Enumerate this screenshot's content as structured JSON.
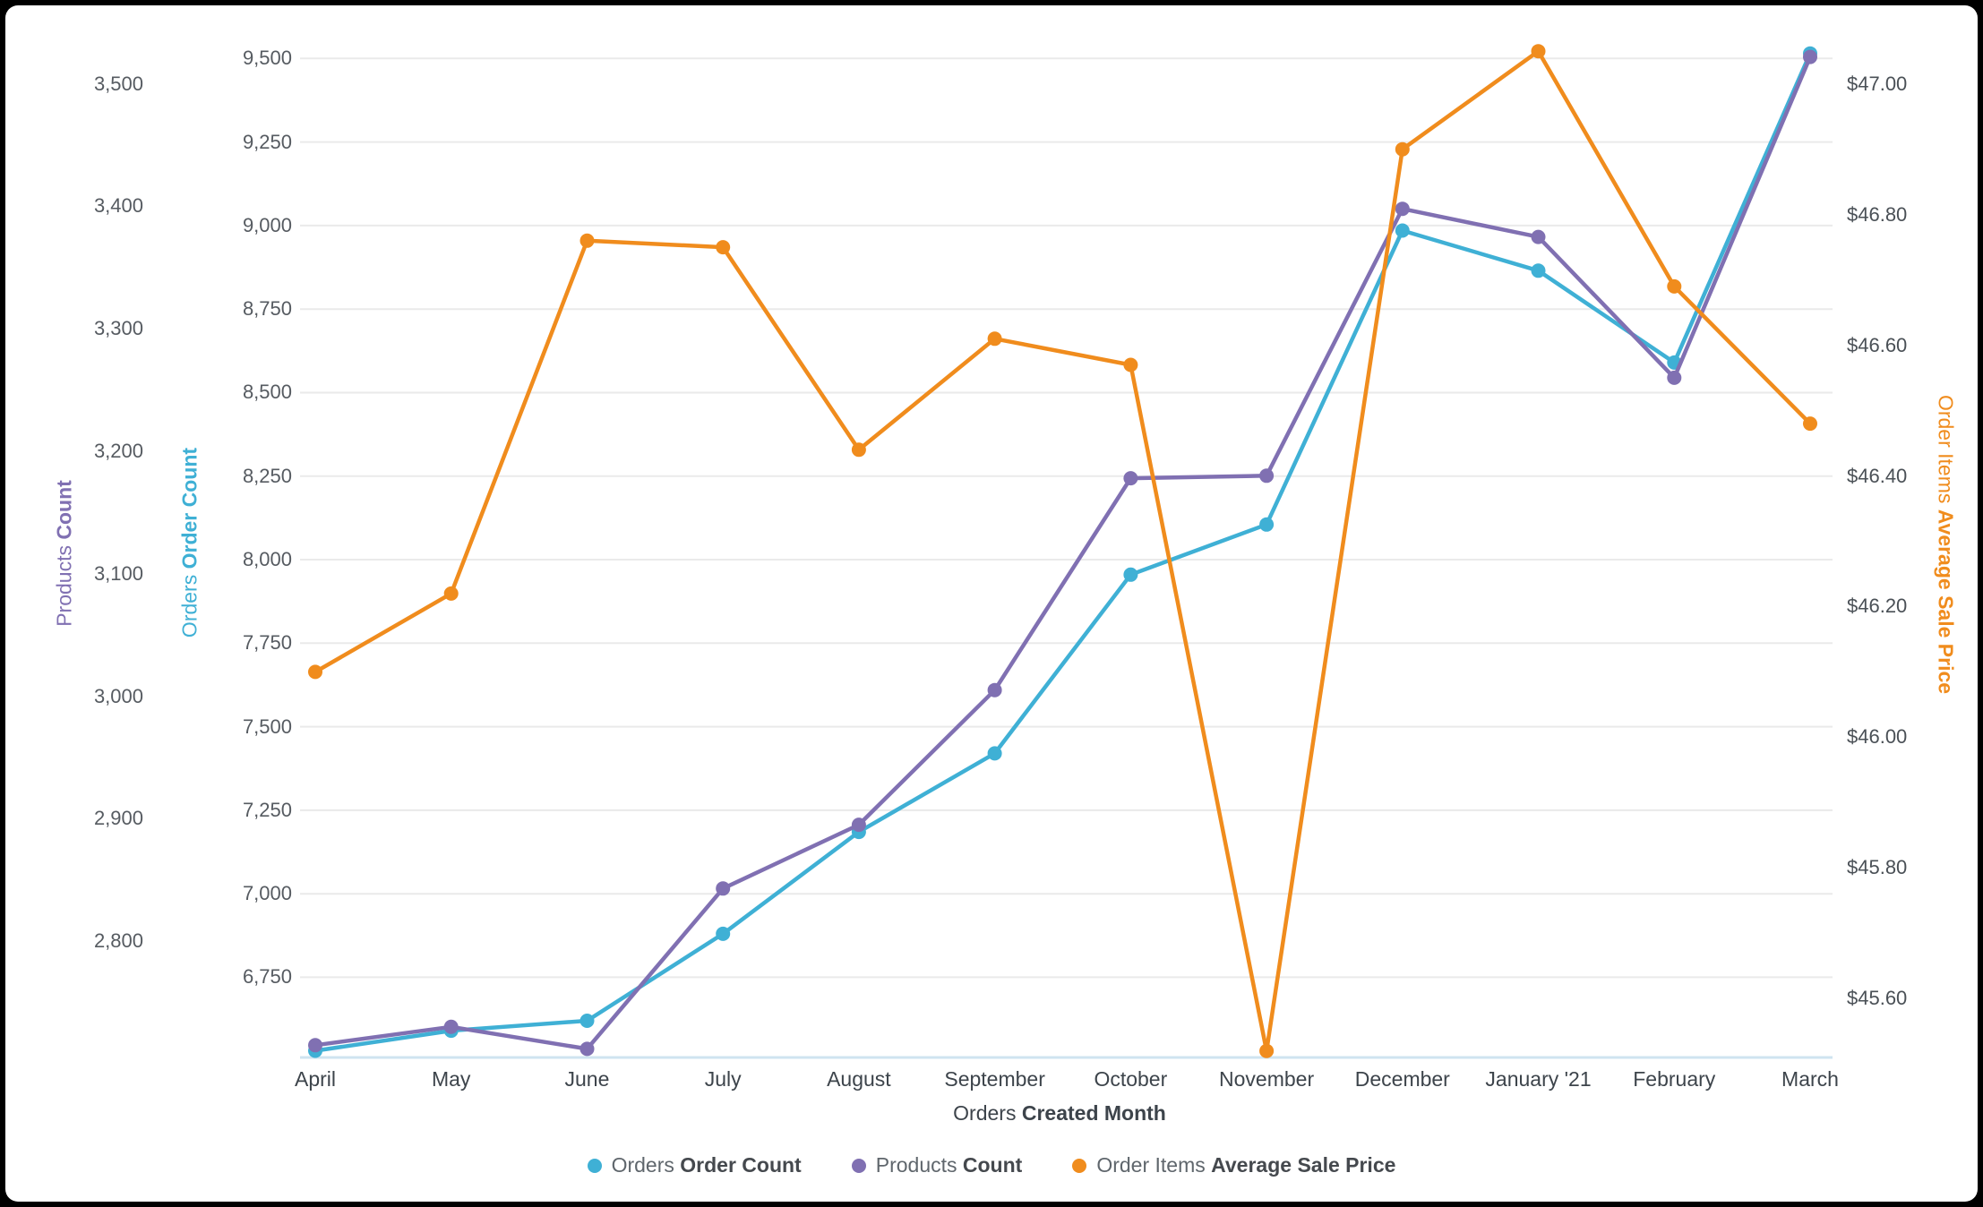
{
  "chart_data": {
    "type": "line",
    "title": "",
    "legend_position": "bottom",
    "grid": "horizontal",
    "x": {
      "title_prefix": "Orders",
      "title_bold": "Created Month",
      "categories": [
        "April",
        "May",
        "June",
        "July",
        "August",
        "September",
        "October",
        "November",
        "December",
        "January '21",
        "February",
        "March"
      ]
    },
    "axes": {
      "products": {
        "title_prefix": "Products",
        "title_bold": "Count",
        "color": "#8070B2",
        "side": "left-outer",
        "range": [
          2705,
          3548
        ],
        "ticks": [
          {
            "label": "3,500",
            "value": 3500
          },
          {
            "label": "3,400",
            "value": 3400
          },
          {
            "label": "3,300",
            "value": 3300
          },
          {
            "label": "3,200",
            "value": 3200
          },
          {
            "label": "3,100",
            "value": 3100
          },
          {
            "label": "3,000",
            "value": 3000
          },
          {
            "label": "2,900",
            "value": 2900
          },
          {
            "label": "2,800",
            "value": 2800
          }
        ]
      },
      "orders": {
        "title_prefix": "Orders",
        "title_bold": "Order Count",
        "color": "#3FB0D5",
        "side": "left-inner",
        "range": [
          6510,
          9600
        ],
        "ticks": [
          {
            "label": "9,500",
            "value": 9500
          },
          {
            "label": "9,250",
            "value": 9250
          },
          {
            "label": "9,000",
            "value": 9000
          },
          {
            "label": "8,750",
            "value": 8750
          },
          {
            "label": "8,500",
            "value": 8500
          },
          {
            "label": "8,250",
            "value": 8250
          },
          {
            "label": "8,000",
            "value": 8000
          },
          {
            "label": "7,750",
            "value": 7750
          },
          {
            "label": "7,500",
            "value": 7500
          },
          {
            "label": "7,250",
            "value": 7250
          },
          {
            "label": "7,000",
            "value": 7000
          },
          {
            "label": "6,750",
            "value": 6750
          }
        ]
      },
      "price": {
        "title_prefix": "Order Items",
        "title_bold": "Average Sale Price",
        "color": "#F08C1D",
        "side": "right",
        "range": [
          45.51,
          47.09
        ],
        "ticks": [
          {
            "label": "$47.00",
            "value": 47.0
          },
          {
            "label": "$46.80",
            "value": 46.8
          },
          {
            "label": "$46.60",
            "value": 46.6
          },
          {
            "label": "$46.40",
            "value": 46.4
          },
          {
            "label": "$46.20",
            "value": 46.2
          },
          {
            "label": "$46.00",
            "value": 46.0
          },
          {
            "label": "$45.80",
            "value": 45.8
          },
          {
            "label": "$45.60",
            "value": 45.6
          }
        ]
      }
    },
    "series": [
      {
        "name_prefix": "Orders",
        "name_bold": "Order Count",
        "axis": "orders",
        "color": "#3FB0D5",
        "values": [
          6530,
          6590,
          6620,
          6880,
          7185,
          7420,
          7955,
          8105,
          8985,
          8865,
          8590,
          9515
        ]
      },
      {
        "name_prefix": "Products",
        "name_bold": "Count",
        "axis": "products",
        "color": "#8070B2",
        "values": [
          2715,
          2730,
          2712,
          2843,
          2895,
          3005,
          3178,
          3180,
          3398,
          3375,
          3260,
          3522
        ]
      },
      {
        "name_prefix": "Order Items",
        "name_bold": "Average Sale Price",
        "axis": "price",
        "color": "#F08C1D",
        "values": [
          46.1,
          46.22,
          46.76,
          46.75,
          46.44,
          46.61,
          46.57,
          45.52,
          46.9,
          47.05,
          46.69,
          46.48
        ]
      }
    ]
  }
}
